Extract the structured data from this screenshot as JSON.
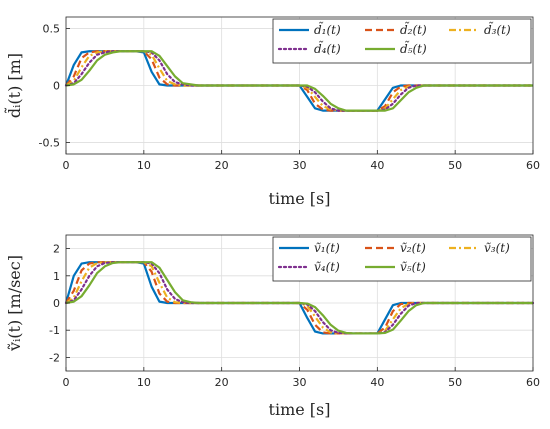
{
  "chart_data": [
    {
      "type": "line",
      "xlabel": "time [s]",
      "ylabel": "d̃ᵢ(t) [m]",
      "xlim": [
        0,
        60
      ],
      "ylim": [
        -0.6,
        0.6
      ],
      "xticks": [
        0,
        10,
        20,
        30,
        40,
        50,
        60
      ],
      "yticks": [
        -0.5,
        0,
        0.5
      ],
      "ytick_labels": [
        "-0.5",
        "0",
        "0.5"
      ],
      "grid": true,
      "legend": {
        "placement": "top-right",
        "columns": 3
      },
      "x": [
        0,
        1,
        2,
        3,
        4,
        5,
        6,
        7,
        8,
        9,
        10,
        11,
        12,
        13,
        14,
        15,
        16,
        17,
        18,
        19,
        20,
        21,
        22,
        23,
        24,
        25,
        26,
        27,
        28,
        29,
        30,
        31,
        32,
        33,
        34,
        35,
        36,
        37,
        38,
        39,
        40,
        41,
        42,
        43,
        44,
        45,
        46,
        47,
        48,
        49,
        50,
        51,
        52,
        53,
        54,
        55,
        56,
        57,
        58,
        59,
        60
      ],
      "series": [
        {
          "name": "d̃₁(t)",
          "color": "#0072BD",
          "dash": "solid",
          "values": [
            0,
            0.18,
            0.29,
            0.3,
            0.3,
            0.3,
            0.3,
            0.3,
            0.3,
            0.3,
            0.29,
            0.12,
            0.01,
            0,
            0,
            0,
            0,
            0,
            0,
            0,
            0,
            0,
            0,
            0,
            0,
            0,
            0,
            0,
            0,
            0,
            0,
            -0.1,
            -0.2,
            -0.22,
            -0.22,
            -0.22,
            -0.22,
            -0.22,
            -0.22,
            -0.22,
            -0.22,
            -0.12,
            -0.02,
            0,
            0,
            0,
            0,
            0,
            0,
            0,
            0,
            0,
            0,
            0,
            0,
            0,
            0,
            0,
            0,
            0,
            0
          ]
        },
        {
          "name": "d̃₂(t)",
          "color": "#D95319",
          "dash": "dashed",
          "values": [
            0,
            0.08,
            0.24,
            0.29,
            0.3,
            0.3,
            0.3,
            0.3,
            0.3,
            0.3,
            0.3,
            0.23,
            0.07,
            0.01,
            0,
            0,
            0,
            0,
            0,
            0,
            0,
            0,
            0,
            0,
            0,
            0,
            0,
            0,
            0,
            0,
            0,
            -0.04,
            -0.16,
            -0.21,
            -0.22,
            -0.22,
            -0.22,
            -0.22,
            -0.22,
            -0.22,
            -0.22,
            -0.18,
            -0.06,
            -0.01,
            0,
            0,
            0,
            0,
            0,
            0,
            0,
            0,
            0,
            0,
            0,
            0,
            0,
            0,
            0,
            0,
            0
          ]
        },
        {
          "name": "d̃₃(t)",
          "color": "#EDB120",
          "dash": "dashdot",
          "values": [
            0,
            0.04,
            0.16,
            0.26,
            0.29,
            0.3,
            0.3,
            0.3,
            0.3,
            0.3,
            0.3,
            0.27,
            0.15,
            0.04,
            0.01,
            0,
            0,
            0,
            0,
            0,
            0,
            0,
            0,
            0,
            0,
            0,
            0,
            0,
            0,
            0,
            0,
            -0.02,
            -0.1,
            -0.18,
            -0.21,
            -0.22,
            -0.22,
            -0.22,
            -0.22,
            -0.22,
            -0.22,
            -0.2,
            -0.12,
            -0.04,
            -0.01,
            0,
            0,
            0,
            0,
            0,
            0,
            0,
            0,
            0,
            0,
            0,
            0,
            0,
            0,
            0,
            0
          ]
        },
        {
          "name": "d̃₄(t)",
          "color": "#7E2F8E",
          "dash": "dotted",
          "values": [
            0,
            0.02,
            0.1,
            0.2,
            0.27,
            0.29,
            0.3,
            0.3,
            0.3,
            0.3,
            0.3,
            0.29,
            0.22,
            0.1,
            0.03,
            0.01,
            0,
            0,
            0,
            0,
            0,
            0,
            0,
            0,
            0,
            0,
            0,
            0,
            0,
            0,
            0,
            -0.01,
            -0.06,
            -0.14,
            -0.2,
            -0.22,
            -0.22,
            -0.22,
            -0.22,
            -0.22,
            -0.22,
            -0.21,
            -0.16,
            -0.08,
            -0.02,
            0,
            0,
            0,
            0,
            0,
            0,
            0,
            0,
            0,
            0,
            0,
            0,
            0,
            0,
            0,
            0
          ]
        },
        {
          "name": "d̃₅(t)",
          "color": "#77AC30",
          "dash": "solid",
          "values": [
            0,
            0.01,
            0.05,
            0.13,
            0.22,
            0.27,
            0.29,
            0.3,
            0.3,
            0.3,
            0.3,
            0.3,
            0.26,
            0.17,
            0.08,
            0.02,
            0.01,
            0,
            0,
            0,
            0,
            0,
            0,
            0,
            0,
            0,
            0,
            0,
            0,
            0,
            0,
            0,
            -0.03,
            -0.09,
            -0.16,
            -0.2,
            -0.22,
            -0.22,
            -0.22,
            -0.22,
            -0.22,
            -0.22,
            -0.2,
            -0.13,
            -0.06,
            -0.02,
            0,
            0,
            0,
            0,
            0,
            0,
            0,
            0,
            0,
            0,
            0,
            0,
            0,
            0,
            0
          ]
        }
      ]
    },
    {
      "type": "line",
      "xlabel": "time [s]",
      "ylabel": "ṽᵢ(t) [m/sec]",
      "xlim": [
        0,
        60
      ],
      "ylim": [
        -2.5,
        2.5
      ],
      "xticks": [
        0,
        10,
        20,
        30,
        40,
        50,
        60
      ],
      "yticks": [
        -2,
        -1,
        0,
        1,
        2
      ],
      "ytick_labels": [
        "-2",
        "-1",
        "0",
        "1",
        "2"
      ],
      "grid": true,
      "legend": {
        "placement": "top-right",
        "columns": 3
      },
      "x": [
        0,
        1,
        2,
        3,
        4,
        5,
        6,
        7,
        8,
        9,
        10,
        11,
        12,
        13,
        14,
        15,
        16,
        17,
        18,
        19,
        20,
        21,
        22,
        23,
        24,
        25,
        26,
        27,
        28,
        29,
        30,
        31,
        32,
        33,
        34,
        35,
        36,
        37,
        38,
        39,
        40,
        41,
        42,
        43,
        44,
        45,
        46,
        47,
        48,
        49,
        50,
        51,
        52,
        53,
        54,
        55,
        56,
        57,
        58,
        59,
        60
      ],
      "series": [
        {
          "name": "ṽ₁(t)",
          "color": "#0072BD",
          "dash": "solid",
          "values": [
            0,
            1,
            1.45,
            1.5,
            1.5,
            1.5,
            1.5,
            1.5,
            1.5,
            1.5,
            1.45,
            0.6,
            0.05,
            0,
            0,
            0,
            0,
            0,
            0,
            0,
            0,
            0,
            0,
            0,
            0,
            0,
            0,
            0,
            0,
            0,
            0,
            -0.55,
            -1.05,
            -1.12,
            -1.12,
            -1.12,
            -1.12,
            -1.12,
            -1.12,
            -1.12,
            -1.12,
            -0.6,
            -0.08,
            0,
            0,
            0,
            0,
            0,
            0,
            0,
            0,
            0,
            0,
            0,
            0,
            0,
            0,
            0,
            0,
            0,
            0
          ]
        },
        {
          "name": "ṽ₂(t)",
          "color": "#D95319",
          "dash": "dashed",
          "values": [
            0,
            0.45,
            1.2,
            1.45,
            1.5,
            1.5,
            1.5,
            1.5,
            1.5,
            1.5,
            1.5,
            1.15,
            0.35,
            0.05,
            0,
            0,
            0,
            0,
            0,
            0,
            0,
            0,
            0,
            0,
            0,
            0,
            0,
            0,
            0,
            0,
            0,
            -0.25,
            -0.8,
            -1.08,
            -1.12,
            -1.12,
            -1.12,
            -1.12,
            -1.12,
            -1.12,
            -1.12,
            -0.9,
            -0.3,
            -0.04,
            0,
            0,
            0,
            0,
            0,
            0,
            0,
            0,
            0,
            0,
            0,
            0,
            0,
            0,
            0,
            0,
            0
          ]
        },
        {
          "name": "ṽ₃(t)",
          "color": "#EDB120",
          "dash": "dashdot",
          "values": [
            0,
            0.2,
            0.8,
            1.3,
            1.47,
            1.5,
            1.5,
            1.5,
            1.5,
            1.5,
            1.5,
            1.35,
            0.75,
            0.2,
            0.03,
            0,
            0,
            0,
            0,
            0,
            0,
            0,
            0,
            0,
            0,
            0,
            0,
            0,
            0,
            0,
            0,
            -0.1,
            -0.5,
            -0.9,
            -1.08,
            -1.12,
            -1.12,
            -1.12,
            -1.12,
            -1.12,
            -1.12,
            -1.02,
            -0.6,
            -0.2,
            -0.03,
            0,
            0,
            0,
            0,
            0,
            0,
            0,
            0,
            0,
            0,
            0,
            0,
            0,
            0,
            0,
            0
          ]
        },
        {
          "name": "ṽ₄(t)",
          "color": "#7E2F8E",
          "dash": "dotted",
          "values": [
            0,
            0.1,
            0.5,
            1,
            1.35,
            1.47,
            1.5,
            1.5,
            1.5,
            1.5,
            1.5,
            1.45,
            1.1,
            0.5,
            0.15,
            0.03,
            0,
            0,
            0,
            0,
            0,
            0,
            0,
            0,
            0,
            0,
            0,
            0,
            0,
            0,
            0,
            -0.05,
            -0.3,
            -0.7,
            -1,
            -1.1,
            -1.12,
            -1.12,
            -1.12,
            -1.12,
            -1.12,
            -1.07,
            -0.8,
            -0.4,
            -0.1,
            0,
            0,
            0,
            0,
            0,
            0,
            0,
            0,
            0,
            0,
            0,
            0,
            0,
            0,
            0,
            0
          ]
        },
        {
          "name": "ṽ₅(t)",
          "color": "#77AC30",
          "dash": "solid",
          "values": [
            0,
            0.05,
            0.25,
            0.65,
            1.1,
            1.35,
            1.47,
            1.5,
            1.5,
            1.5,
            1.5,
            1.5,
            1.3,
            0.85,
            0.4,
            0.1,
            0.03,
            0,
            0,
            0,
            0,
            0,
            0,
            0,
            0,
            0,
            0,
            0,
            0,
            0,
            0,
            -0.02,
            -0.15,
            -0.45,
            -0.8,
            -1.02,
            -1.1,
            -1.12,
            -1.12,
            -1.12,
            -1.12,
            -1.1,
            -0.98,
            -0.65,
            -0.3,
            -0.08,
            0,
            0,
            0,
            0,
            0,
            0,
            0,
            0,
            0,
            0,
            0,
            0,
            0,
            0,
            0
          ]
        }
      ]
    }
  ]
}
